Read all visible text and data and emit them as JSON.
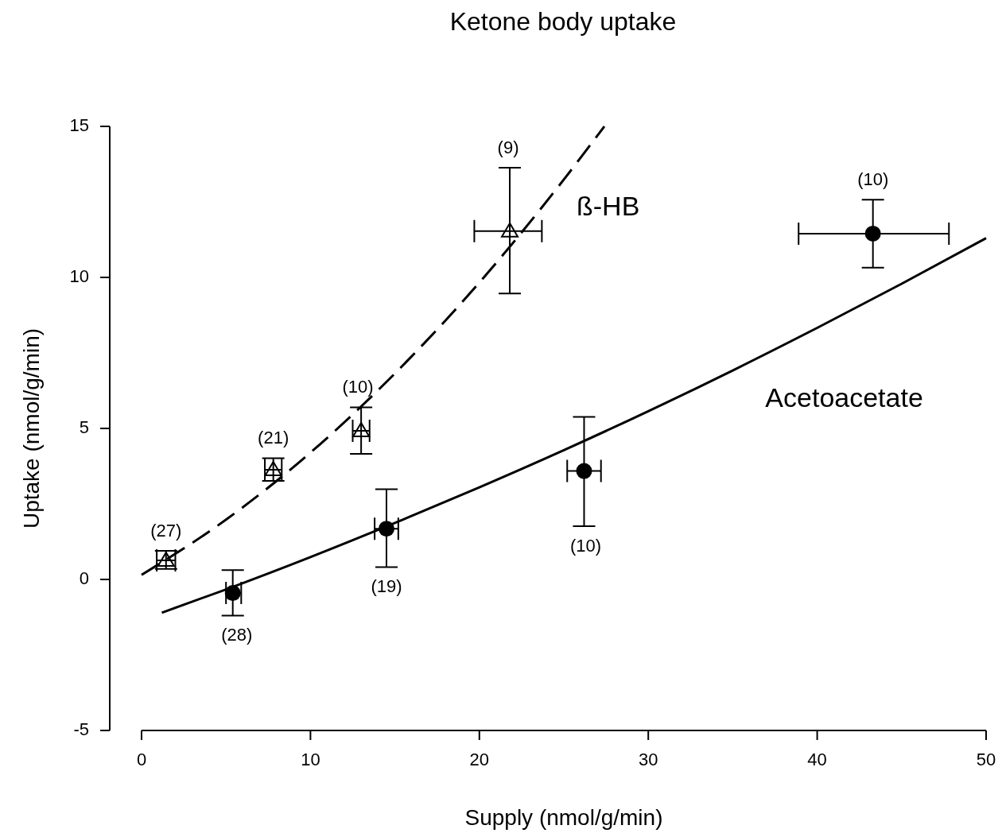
{
  "chart_data": {
    "type": "scatter",
    "title": "Ketone body uptake",
    "xlabel": "Supply (nmol/g/min)",
    "ylabel": "Uptake (nmol/g/min)",
    "xlim": [
      0,
      50
    ],
    "xticks": [
      0,
      10,
      20,
      30,
      40,
      50
    ],
    "ylim": [
      -5,
      15
    ],
    "yticks": [
      -5,
      0,
      5,
      10,
      15
    ],
    "grid": false,
    "legend": false,
    "series": [
      {
        "name": "ß-HB",
        "type": "line",
        "line_style": "dashed",
        "marker": "none",
        "color": "#000000",
        "x": [
          0,
          5,
          10,
          15,
          20,
          25,
          27.4
        ],
        "values": [
          0.15,
          1.98,
          4.2,
          6.82,
          9.83,
          13.24,
          15.0
        ]
      },
      {
        "name": "Acetoacetate",
        "type": "line",
        "line_style": "solid",
        "marker": "none",
        "color": "#000000",
        "x": [
          1.2,
          5,
          10,
          15,
          20,
          25,
          30,
          35,
          40,
          45,
          50
        ],
        "values": [
          -1.1,
          -0.33,
          0.74,
          1.87,
          3.05,
          4.28,
          5.57,
          6.92,
          8.33,
          9.79,
          11.3
        ]
      },
      {
        "marker": "triangle",
        "color": "#000000",
        "x": [
          1.45,
          7.8,
          13.0,
          21.8
        ],
        "values": [
          0.63,
          3.63,
          4.92,
          11.53
        ],
        "errors": [
          [
            0.35,
            0.95
          ],
          [
            3.26,
            4.01
          ],
          [
            4.16,
            5.7
          ],
          [
            9.47,
            13.63
          ]
        ],
        "xerrors": [
          [
            0.9,
            2.0
          ],
          [
            7.3,
            8.3
          ],
          [
            12.5,
            13.5
          ],
          [
            19.7,
            23.7
          ]
        ]
      },
      {
        "marker": "circle",
        "color": "#000000",
        "x": [
          5.4,
          14.5,
          26.2,
          43.3
        ],
        "values": [
          -0.45,
          1.68,
          3.59,
          11.45
        ],
        "errors": [
          [
            -1.2,
            0.31
          ],
          [
            0.41,
            2.99
          ],
          [
            1.76,
            5.38
          ],
          [
            10.32,
            12.57
          ]
        ],
        "xerrors": [
          [
            5.0,
            5.9
          ],
          [
            13.8,
            15.2
          ],
          [
            25.2,
            27.2
          ],
          [
            38.9,
            47.8
          ]
        ]
      }
    ],
    "annotations": [
      {
        "text": "(27)",
        "x": 1.45,
        "y": 0.95
      },
      {
        "text": "(21)",
        "x": 7.8,
        "y": 4.01
      },
      {
        "text": "(10)",
        "x": 13.0,
        "y": 5.7
      },
      {
        "text": "(9)",
        "x": 21.8,
        "y": 13.63
      },
      {
        "text": "(28)",
        "x": 5.4,
        "y": -1.2
      },
      {
        "text": "(19)",
        "x": 14.5,
        "y": 0.41
      },
      {
        "text": "(10)",
        "x": 26.2,
        "y": 1.76
      },
      {
        "text": "(10)",
        "x": 43.3,
        "y": 12.57
      }
    ]
  }
}
